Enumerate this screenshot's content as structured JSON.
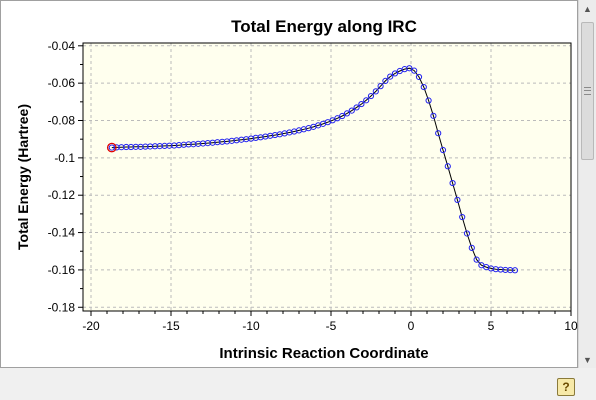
{
  "chart_data": {
    "type": "scatter",
    "title": "Total Energy along IRC",
    "xlabel": "Intrinsic Reaction Coordinate",
    "ylabel": "Total Energy (Hartree)",
    "xlim": [
      -20.5,
      10
    ],
    "ylim": [
      -0.182,
      -0.0385
    ],
    "x_ticks": [
      -20,
      -15,
      -10,
      -5,
      0,
      5,
      10
    ],
    "y_ticks": [
      -0.04,
      -0.06,
      -0.08,
      -0.1,
      -0.12,
      -0.14,
      -0.16,
      -0.18
    ],
    "x_tick_labels": [
      "-20",
      "-15",
      "-10",
      "-5",
      "0",
      "5",
      "10"
    ],
    "y_tick_labels": [
      "-0.04",
      "-0.06",
      "-0.08",
      "-0.1",
      "-0.12",
      "-0.14",
      "-0.16",
      "-0.18"
    ],
    "grid": true,
    "highlighted_point": [
      -18.7,
      -0.0945
    ],
    "series": [
      {
        "x": [
          -18.7,
          -18.4,
          -18.1,
          -17.8,
          -17.5,
          -17.2,
          -16.9,
          -16.6,
          -16.3,
          -16.0,
          -15.7,
          -15.4,
          -15.1,
          -14.8,
          -14.5,
          -14.2,
          -13.9,
          -13.6,
          -13.3,
          -13.0,
          -12.7,
          -12.4,
          -12.1,
          -11.8,
          -11.5,
          -11.2,
          -10.9,
          -10.6,
          -10.3,
          -10.0,
          -9.7,
          -9.4,
          -9.1,
          -8.8,
          -8.5,
          -8.2,
          -7.9,
          -7.6,
          -7.3,
          -7.0,
          -6.7,
          -6.4,
          -6.1,
          -5.8,
          -5.5,
          -5.2,
          -4.9,
          -4.6,
          -4.3,
          -4.0,
          -3.7,
          -3.4,
          -3.1,
          -2.8,
          -2.5,
          -2.2,
          -1.9,
          -1.6,
          -1.3,
          -1.0,
          -0.7,
          -0.4,
          -0.1,
          0.2,
          0.5,
          0.8,
          1.1,
          1.4,
          1.7,
          2.0,
          2.3,
          2.6,
          2.9,
          3.2,
          3.5,
          3.8,
          4.1,
          4.4,
          4.7,
          5.0,
          5.3,
          5.6,
          5.9,
          6.2,
          6.5
        ],
        "y": [
          -0.0945,
          -0.0944,
          -0.0943,
          -0.0942,
          -0.0942,
          -0.0941,
          -0.0941,
          -0.094,
          -0.0939,
          -0.0938,
          -0.0937,
          -0.0936,
          -0.0935,
          -0.0934,
          -0.0932,
          -0.093,
          -0.0928,
          -0.0927,
          -0.0925,
          -0.0923,
          -0.0921,
          -0.0919,
          -0.0916,
          -0.0914,
          -0.0912,
          -0.0909,
          -0.0906,
          -0.0903,
          -0.09,
          -0.0897,
          -0.0893,
          -0.089,
          -0.0886,
          -0.0882,
          -0.0878,
          -0.0874,
          -0.0869,
          -0.0864,
          -0.0859,
          -0.0853,
          -0.0847,
          -0.0841,
          -0.0834,
          -0.0826,
          -0.0818,
          -0.0809,
          -0.0799,
          -0.0788,
          -0.0776,
          -0.0762,
          -0.0747,
          -0.073,
          -0.0712,
          -0.0692,
          -0.0669,
          -0.0644,
          -0.0616,
          -0.0588,
          -0.0565,
          -0.0548,
          -0.0535,
          -0.0525,
          -0.052,
          -0.0533,
          -0.0567,
          -0.0621,
          -0.0693,
          -0.0775,
          -0.0868,
          -0.0958,
          -0.1045,
          -0.1135,
          -0.1225,
          -0.1317,
          -0.1405,
          -0.1482,
          -0.1545,
          -0.1575,
          -0.1585,
          -0.1592,
          -0.1596,
          -0.1598,
          -0.16,
          -0.1601,
          -0.1602
        ]
      }
    ]
  }
}
